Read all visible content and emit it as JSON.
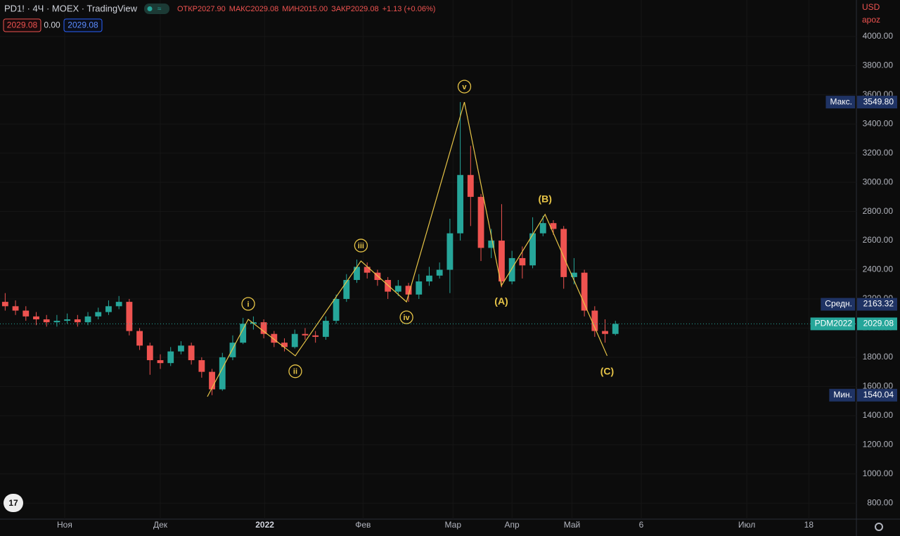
{
  "header": {
    "symbol": "PD1! · 4Ч · MOEX · TradingView",
    "ohlc": [
      {
        "label": "ОТКР",
        "value": "2027.90"
      },
      {
        "label": "МАКС",
        "value": "2029.08"
      },
      {
        "label": "МИН",
        "value": "2015.00"
      },
      {
        "label": "ЗАКР",
        "value": "2029.08"
      }
    ],
    "change": "+1.13 (+0.06%)",
    "bid": "2029.08",
    "spread": "0.00",
    "ask": "2029.08",
    "currency": "USD",
    "scale_mode": "apoz"
  },
  "chart_data": {
    "type": "candlestick",
    "up_color": "#26a69a",
    "down_color": "#ef5350",
    "wave_color": "#e8c547",
    "grid": true,
    "xlim": [
      -0.5,
      82.3
    ],
    "ylim": [
      690,
      4250
    ],
    "xticks": [
      {
        "value": 5.75,
        "label": "Ноя"
      },
      {
        "value": 15.0,
        "label": "Дек"
      },
      {
        "value": 25.1,
        "label": "2022",
        "bold": true
      },
      {
        "value": 34.6,
        "label": "Фев"
      },
      {
        "value": 43.3,
        "label": "Мар"
      },
      {
        "value": 49.0,
        "label": "Апр"
      },
      {
        "value": 54.8,
        "label": "Май"
      },
      {
        "value": 61.5,
        "label": "6"
      },
      {
        "value": 71.7,
        "label": "Июл"
      },
      {
        "value": 77.7,
        "label": "18"
      }
    ],
    "yticks": [
      {
        "value": 800,
        "label": "800.00"
      },
      {
        "value": 1000,
        "label": "1000.00"
      },
      {
        "value": 1200,
        "label": "1200.00"
      },
      {
        "value": 1400,
        "label": "1400.00"
      },
      {
        "value": 1600,
        "label": "1600.00"
      },
      {
        "value": 1800,
        "label": "1800.00"
      },
      {
        "value": 2000,
        "label": "2000.00"
      },
      {
        "value": 2200,
        "label": "2200.00"
      },
      {
        "value": 2400,
        "label": "2400.00"
      },
      {
        "value": 2600,
        "label": "2600.00"
      },
      {
        "value": 2800,
        "label": "2800.00"
      },
      {
        "value": 3000,
        "label": "3000.00"
      },
      {
        "value": 3200,
        "label": "3200.00"
      },
      {
        "value": 3400,
        "label": "3400.00"
      },
      {
        "value": 3600,
        "label": "3600.00"
      },
      {
        "value": 3800,
        "label": "3800.00"
      },
      {
        "value": 4000,
        "label": "4000.00"
      }
    ],
    "open": [
      2180,
      2150,
      2120,
      2080,
      2060,
      2040,
      2050,
      2060,
      2040,
      2080,
      2110,
      2150,
      2180,
      1980,
      1880,
      1780,
      1760,
      1840,
      1880,
      1780,
      1700,
      1580,
      1800,
      1900,
      2030,
      2040,
      1960,
      1900,
      1870,
      1960,
      1950,
      1940,
      2050,
      2200,
      2330,
      2420,
      2380,
      2330,
      2250,
      2290,
      2230,
      2320,
      2360,
      2400,
      2650,
      3050,
      2900,
      2550,
      2600,
      2320,
      2480,
      2430,
      2650,
      2720,
      2680,
      2350,
      2380,
      2120,
      1980,
      1960
    ],
    "high": [
      2240,
      2190,
      2150,
      2110,
      2090,
      2090,
      2100,
      2090,
      2110,
      2140,
      2190,
      2220,
      2200,
      2000,
      1900,
      1820,
      1870,
      1910,
      1900,
      1800,
      1720,
      1830,
      1950,
      2070,
      2080,
      2060,
      1980,
      1930,
      1990,
      2000,
      1980,
      2080,
      2230,
      2370,
      2470,
      2450,
      2400,
      2350,
      2330,
      2310,
      2370,
      2420,
      2450,
      2750,
      3549.8,
      3250,
      2920,
      2680,
      2850,
      2530,
      2560,
      2760,
      2770,
      2740,
      2700,
      2480,
      2400,
      2150,
      2060,
      2050
    ],
    "low": [
      2120,
      2090,
      2050,
      2020,
      2010,
      2010,
      2030,
      2010,
      2020,
      2060,
      2090,
      2130,
      1950,
      1850,
      1680,
      1720,
      1740,
      1820,
      1750,
      1660,
      1540.04,
      1570,
      1780,
      1890,
      1990,
      1930,
      1870,
      1840,
      1860,
      1920,
      1900,
      1920,
      2030,
      2180,
      2310,
      2340,
      2290,
      2200,
      2220,
      2180,
      2200,
      2290,
      2340,
      2240,
      2600,
      2700,
      2460,
      2480,
      2280,
      2300,
      2340,
      2410,
      2630,
      2640,
      2270,
      2300,
      2080,
      1940,
      1900,
      1950
    ],
    "close": [
      2150,
      2120,
      2080,
      2060,
      2040,
      2050,
      2060,
      2040,
      2080,
      2110,
      2150,
      2180,
      1980,
      1880,
      1780,
      1760,
      1840,
      1880,
      1780,
      1700,
      1580,
      1800,
      1900,
      2030,
      2040,
      1960,
      1900,
      1870,
      1960,
      1950,
      1940,
      2050,
      2200,
      2330,
      2420,
      2380,
      2330,
      2250,
      2290,
      2230,
      2320,
      2360,
      2400,
      2650,
      3050,
      2900,
      2550,
      2600,
      2320,
      2480,
      2430,
      2650,
      2720,
      2680,
      2350,
      2380,
      2120,
      1980,
      1960,
      2029.08
    ],
    "waves": {
      "labels": [
        null,
        "i",
        "ii",
        "iii",
        "iv",
        "v",
        "(A)",
        "(B)",
        "(C)"
      ],
      "x": [
        19.55,
        23.5,
        28.05,
        34.4,
        38.8,
        44.4,
        47.97,
        52.2,
        58.2
      ],
      "y": [
        1530,
        2060,
        1810,
        2460,
        2180,
        3550,
        2290,
        2780,
        1810
      ]
    },
    "price_labels": [
      {
        "label": "Макс.",
        "value": 3549.8,
        "value_label": "3549.80",
        "color": "#1f3364"
      },
      {
        "label": "Средн.",
        "value": 2163.32,
        "value_label": "2163.32",
        "color": "#1f3364"
      },
      {
        "label": "PDM2022",
        "value": 2029.08,
        "value_label": "2029.08",
        "color": "#26a69a",
        "line": true
      },
      {
        "label": "Мин.",
        "value": 1540.04,
        "value_label": "1540.04",
        "color": "#1f3364"
      }
    ]
  }
}
